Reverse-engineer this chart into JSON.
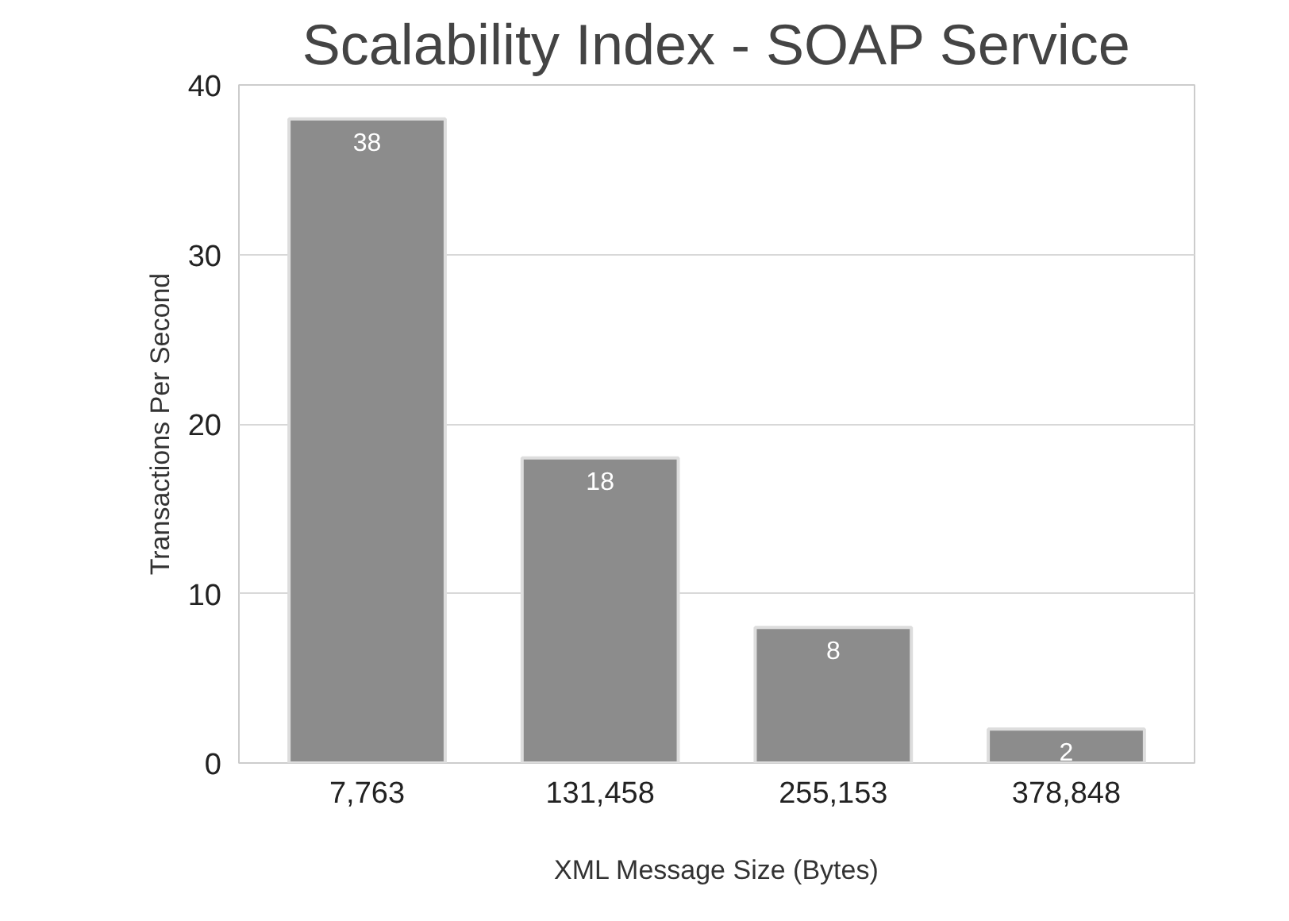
{
  "chart_data": {
    "type": "bar",
    "title": "Scalability Index - SOAP Service",
    "xlabel": "XML Message Size (Bytes)",
    "ylabel": "Transactions Per Second",
    "categories": [
      "7,763",
      "131,458",
      "255,153",
      "378,848"
    ],
    "values": [
      38,
      18,
      8,
      2
    ],
    "color": "#8c8c8c",
    "ylim": [
      0,
      40
    ],
    "yticks": [
      0,
      10,
      20,
      30,
      40
    ],
    "grid": "y",
    "data_labels": true
  }
}
